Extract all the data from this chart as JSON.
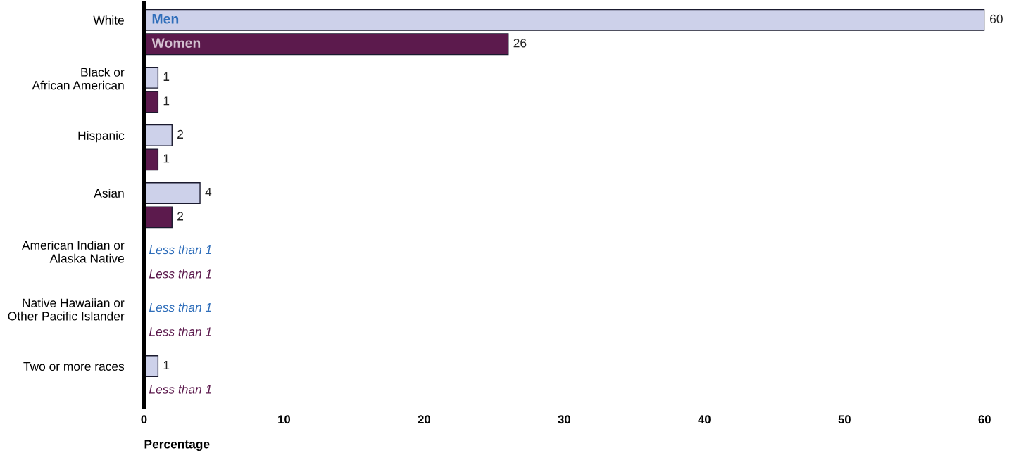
{
  "chart_data": {
    "type": "bar",
    "orientation": "horizontal",
    "xlabel": "Percentage",
    "categories": [
      "White",
      "Black or\nAfrican American",
      "Hispanic",
      "Asian",
      "American Indian or\nAlaska Native",
      "Native Hawaiian or\nOther Pacific Islander",
      "Two or more races"
    ],
    "series": [
      {
        "name": "Men",
        "color": "#cdd1ea",
        "values": [
          60,
          1,
          2,
          4,
          null,
          null,
          1
        ],
        "value_labels": [
          "60",
          "1",
          "2",
          "4",
          "Less than 1",
          "Less than 1",
          "1"
        ]
      },
      {
        "name": "Women",
        "color": "#5c1a4d",
        "values": [
          26,
          1,
          1,
          2,
          null,
          null,
          null
        ],
        "value_labels": [
          "26",
          "1",
          "1",
          "2",
          "Less than 1",
          "Less than 1",
          "Less than 1"
        ]
      }
    ],
    "xlim": [
      0,
      60
    ],
    "xticks": [
      0,
      10,
      20,
      30,
      40,
      50,
      60
    ],
    "grid": false,
    "legend": false
  }
}
